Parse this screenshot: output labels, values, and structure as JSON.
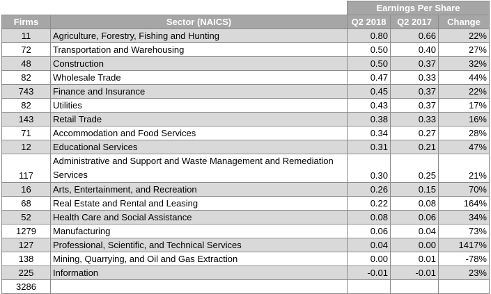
{
  "header": {
    "group_label": "Earnings Per Share",
    "columns": [
      "Firms",
      "Sector (NAICS)",
      "Q2 2018",
      "Q2 2017",
      "Change"
    ]
  },
  "rows": [
    {
      "firms": "11",
      "sector": "Agriculture, Forestry, Fishing and Hunting",
      "q2_2018": "0.80",
      "q2_2017": "0.66",
      "change": "22%"
    },
    {
      "firms": "72",
      "sector": "Transportation and Warehousing",
      "q2_2018": "0.50",
      "q2_2017": "0.40",
      "change": "27%"
    },
    {
      "firms": "48",
      "sector": "Construction",
      "q2_2018": "0.50",
      "q2_2017": "0.37",
      "change": "32%"
    },
    {
      "firms": "82",
      "sector": "Wholesale Trade",
      "q2_2018": "0.47",
      "q2_2017": "0.33",
      "change": "44%"
    },
    {
      "firms": "743",
      "sector": "Finance and Insurance",
      "q2_2018": "0.45",
      "q2_2017": "0.37",
      "change": "22%"
    },
    {
      "firms": "82",
      "sector": "Utilities",
      "q2_2018": "0.43",
      "q2_2017": "0.37",
      "change": "17%"
    },
    {
      "firms": "143",
      "sector": "Retail Trade",
      "q2_2018": "0.38",
      "q2_2017": "0.33",
      "change": "16%"
    },
    {
      "firms": "71",
      "sector": "Accommodation and Food Services",
      "q2_2018": "0.34",
      "q2_2017": "0.27",
      "change": "28%"
    },
    {
      "firms": "12",
      "sector": "Educational Services",
      "q2_2018": "0.31",
      "q2_2017": "0.21",
      "change": "47%"
    },
    {
      "firms": "117",
      "sector": "Administrative and Support and Waste Management and Remediation Services",
      "q2_2018": "0.30",
      "q2_2017": "0.25",
      "change": "21%"
    },
    {
      "firms": "16",
      "sector": "Arts, Entertainment, and Recreation",
      "q2_2018": "0.26",
      "q2_2017": "0.15",
      "change": "70%"
    },
    {
      "firms": "68",
      "sector": "Real Estate and Rental and Leasing",
      "q2_2018": "0.22",
      "q2_2017": "0.08",
      "change": "164%"
    },
    {
      "firms": "52",
      "sector": "Health Care and Social Assistance",
      "q2_2018": "0.08",
      "q2_2017": "0.06",
      "change": "34%"
    },
    {
      "firms": "1279",
      "sector": "Manufacturing",
      "q2_2018": "0.06",
      "q2_2017": "0.04",
      "change": "73%"
    },
    {
      "firms": "127",
      "sector": "Professional, Scientific, and Technical Services",
      "q2_2018": "0.04",
      "q2_2017": "0.00",
      "change": "1417%"
    },
    {
      "firms": "138",
      "sector": "Mining, Quarrying, and Oil and Gas Extraction",
      "q2_2018": "0.00",
      "q2_2017": "0.01",
      "change": "-78%"
    },
    {
      "firms": "225",
      "sector": "Information",
      "q2_2018": "-0.01",
      "q2_2017": "-0.01",
      "change": "23%"
    }
  ],
  "total": {
    "firms": "3286"
  },
  "colors": {
    "header_bg": "#a6a6a6",
    "alt_row_bg": "#d9d9d9",
    "border": "#8c8c8c"
  }
}
